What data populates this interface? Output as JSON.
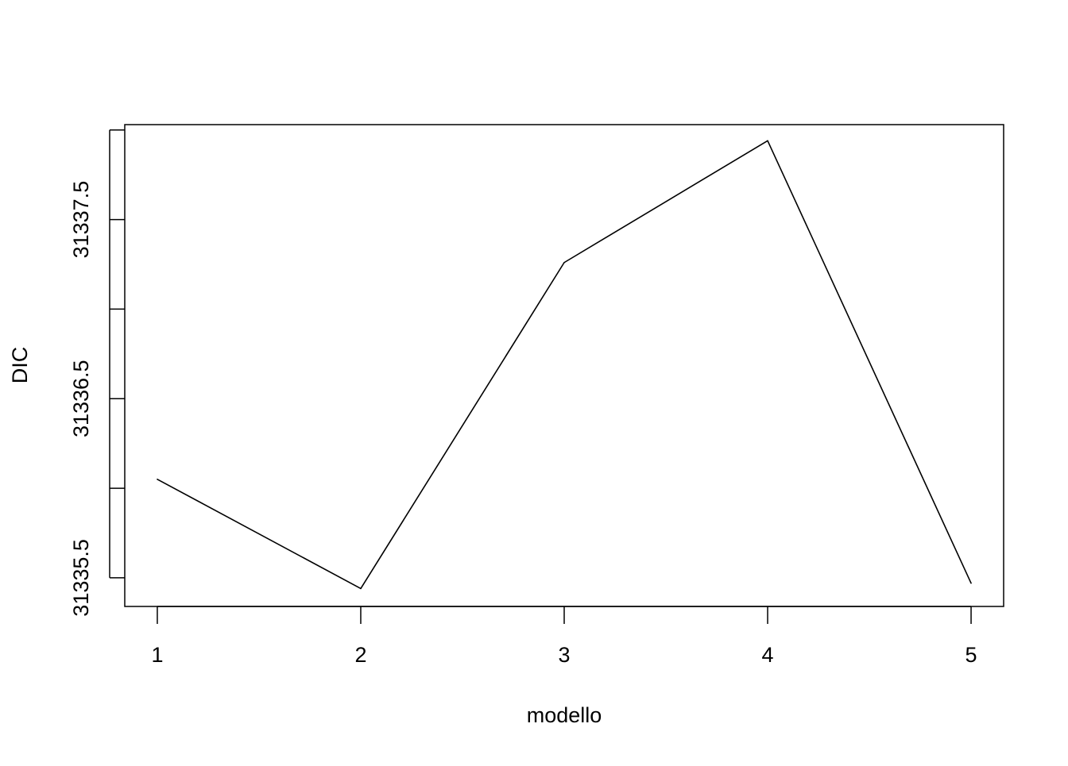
{
  "chart_data": {
    "type": "line",
    "xlabel": "modello",
    "ylabel": "DIC",
    "x": [
      1,
      2,
      3,
      4,
      5
    ],
    "x_ticks": [
      1,
      2,
      3,
      4,
      5
    ],
    "x_tick_labels": [
      "1",
      "2",
      "3",
      "4",
      "5"
    ],
    "series": [
      {
        "values": [
          31336.05,
          31335.44,
          31337.26,
          31337.94,
          31335.47
        ]
      }
    ],
    "y_ticks": [
      31335.5,
      31336.0,
      31336.5,
      31337.0,
      31337.5,
      31338.0
    ],
    "y_tick_labels": [
      "31335.5",
      "",
      "31336.5",
      "",
      "31337.5",
      ""
    ],
    "xlim": [
      0.84,
      5.16
    ],
    "ylim": [
      31335.34,
      31338.03
    ],
    "grid": false,
    "line_color": "#000000"
  }
}
